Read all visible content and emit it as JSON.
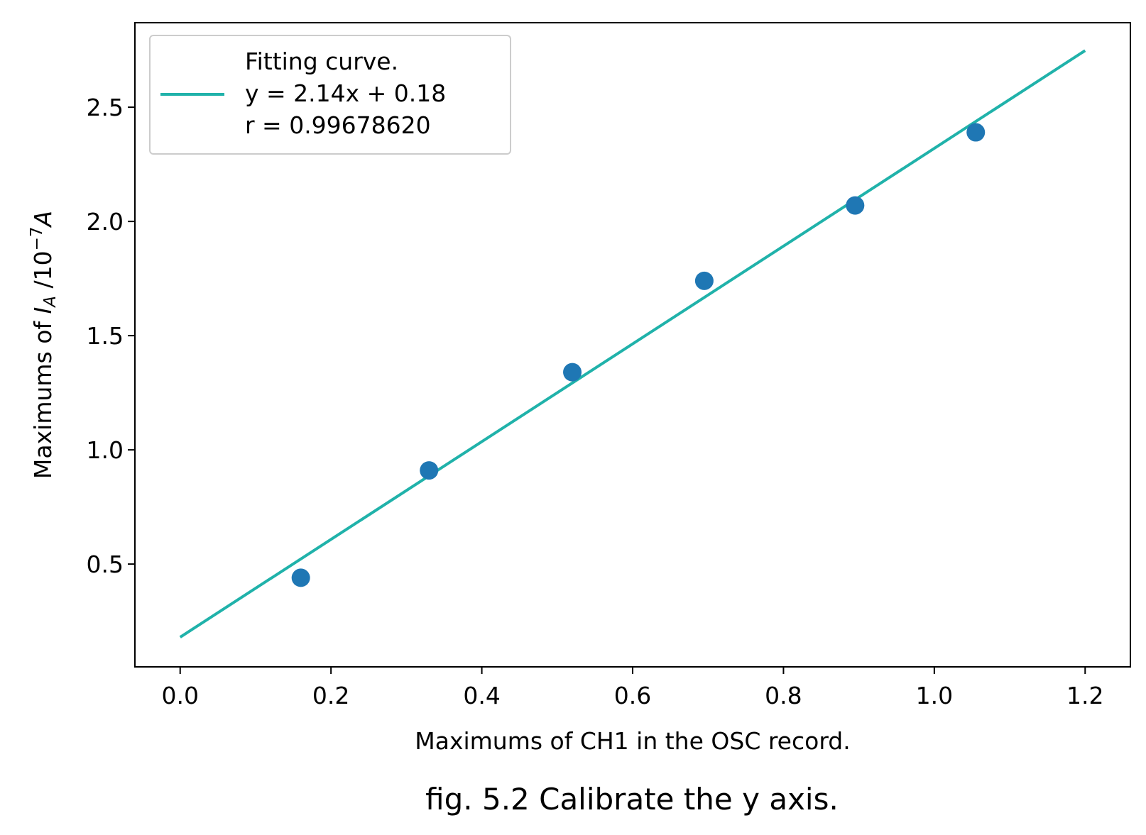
{
  "chart_data": {
    "type": "scatter",
    "xlabel": "Maximums of CH1 in the OSC record.",
    "ylabel": {
      "prefix": "Maximums of ",
      "symbol": "I",
      "subscript": "A",
      "unit_base": " /10",
      "exponent": "−7",
      "unit_symbol": "A"
    },
    "caption": "fig. 5.2 Calibrate the y axis.",
    "xlim": [
      -0.06,
      1.26
    ],
    "ylim": [
      0.05,
      2.87
    ],
    "x_ticks": [
      0.0,
      0.2,
      0.4,
      0.6,
      0.8,
      1.0,
      1.2
    ],
    "x_tick_labels": [
      "0.0",
      "0.2",
      "0.4",
      "0.6",
      "0.8",
      "1.0",
      "1.2"
    ],
    "y_ticks": [
      0.5,
      1.0,
      1.5,
      2.0,
      2.5
    ],
    "y_tick_labels": [
      "0.5",
      "1.0",
      "1.5",
      "2.0",
      "2.5"
    ],
    "grid": false,
    "legend_position": "top-left",
    "series": [
      {
        "kind": "scatter",
        "color": "#1f77b4",
        "points": [
          {
            "x": 0.16,
            "y": 0.44
          },
          {
            "x": 0.33,
            "y": 0.91
          },
          {
            "x": 0.52,
            "y": 1.34
          },
          {
            "x": 0.695,
            "y": 1.74
          },
          {
            "x": 0.895,
            "y": 2.07
          },
          {
            "x": 1.055,
            "y": 2.39
          }
        ]
      },
      {
        "kind": "line",
        "color": "#20b2aa",
        "legend_lines": [
          "Fitting curve.",
          "y = 2.14x + 0.18",
          "r = 0.99678620"
        ],
        "slope": 2.14,
        "intercept": 0.18,
        "x_range": [
          0.0,
          1.2
        ]
      }
    ]
  }
}
